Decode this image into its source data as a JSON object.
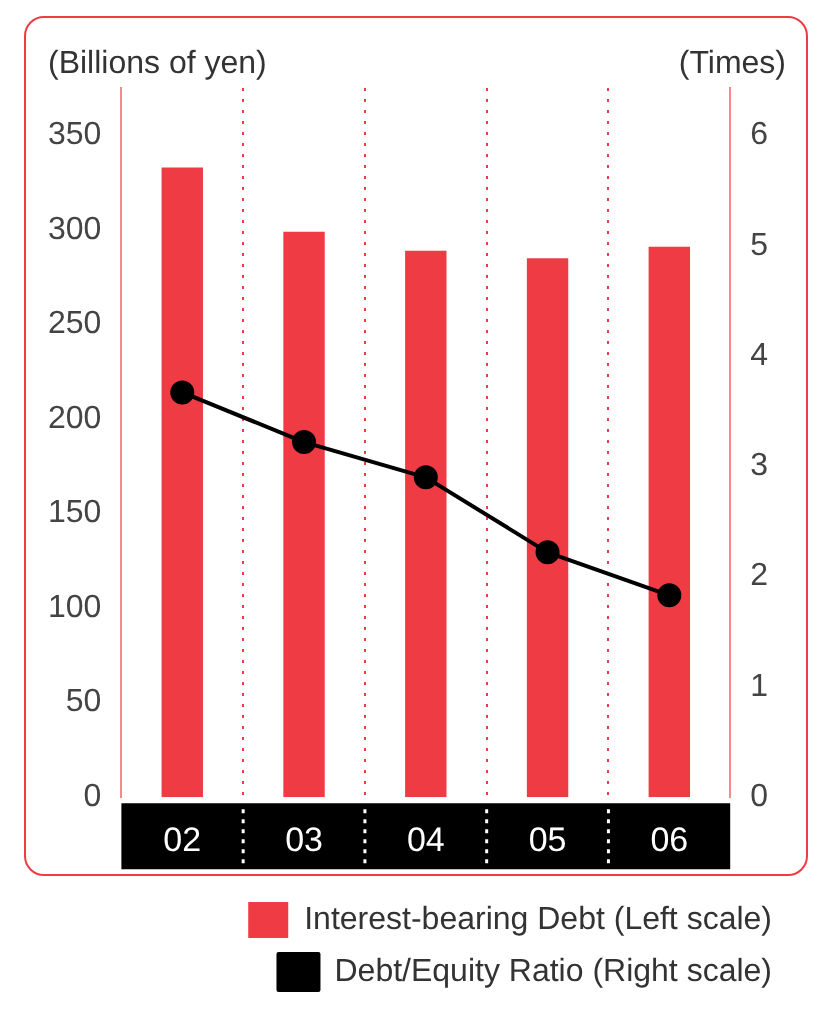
{
  "chart_data": {
    "type": "bar",
    "ylabel": "(Billions of yen)",
    "y2label": "(Times)",
    "categories": [
      "02",
      "03",
      "04",
      "05",
      "06"
    ],
    "series": [
      {
        "name": "Interest-bearing Debt (Left scale)",
        "color": "#ef3b44",
        "values": [
          333,
          299,
          289,
          285,
          291
        ]
      },
      {
        "name": "Debt/Equity Ratio (Right scale)",
        "type": "line",
        "axis": "y2",
        "color": "#000000",
        "marker": "circle",
        "values": [
          3.67,
          3.22,
          2.9,
          2.22,
          1.83
        ]
      }
    ],
    "ylim": [
      0,
      375
    ],
    "yticks": [
      0,
      50,
      100,
      150,
      200,
      250,
      300,
      350
    ],
    "y2lim": [
      0,
      6.43
    ],
    "y2ticks": [
      0,
      1,
      2,
      3,
      4,
      5,
      6
    ],
    "grid": "x",
    "legend": "bottom"
  }
}
